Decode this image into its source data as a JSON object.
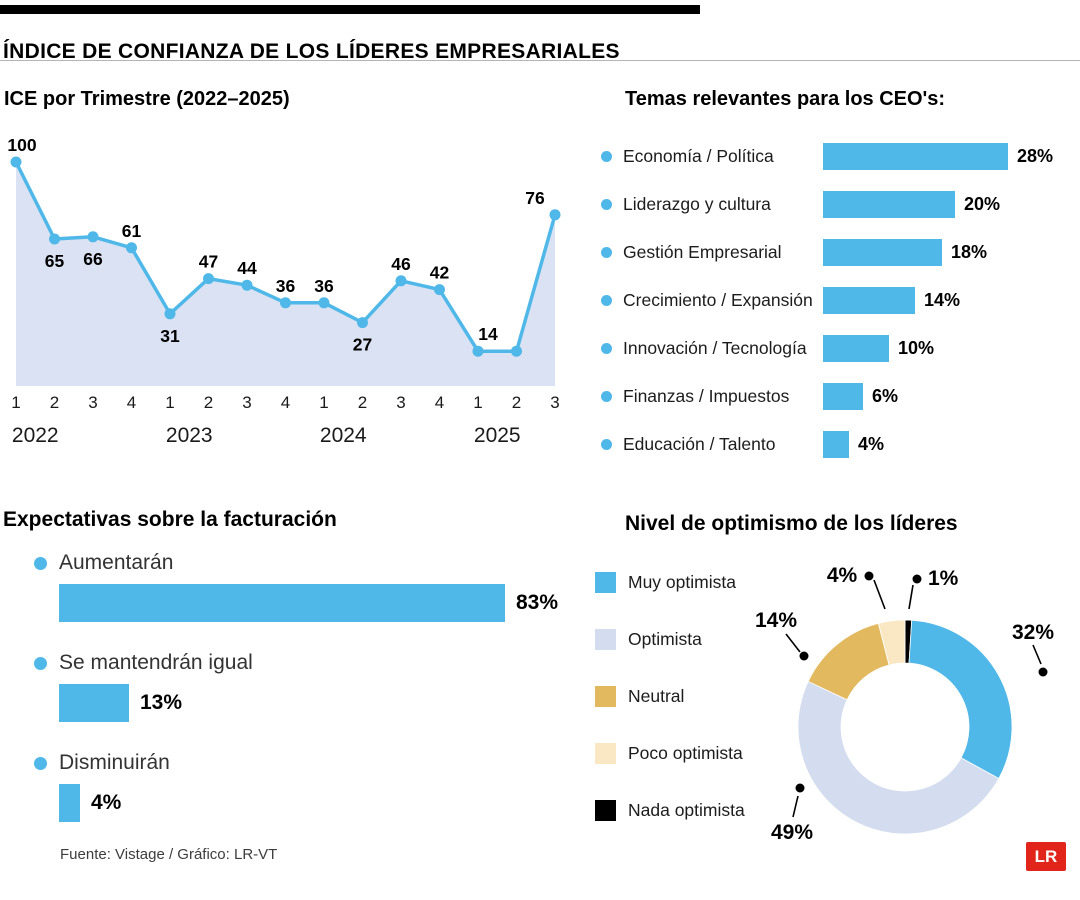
{
  "header": {
    "title": "ÍNDICE DE CONFIANZA DE LOS LÍDERES EMPRESARIALES"
  },
  "colors": {
    "blue": "#4fb8e8",
    "area_fill": "#dbe2f3",
    "periwinkle": "#d4dcf0",
    "gold": "#e3b960",
    "cream": "#fae8c4",
    "black": "#000000",
    "lr_red": "#e1251b"
  },
  "chart_data": [
    {
      "id": "ice_trend",
      "type": "line",
      "title": "ICE por Trimestre (2022–2025)",
      "x": [
        1,
        2,
        3,
        4,
        1,
        2,
        3,
        4,
        1,
        2,
        3,
        4,
        1,
        2,
        3
      ],
      "values": [
        100,
        65,
        66,
        61,
        31,
        47,
        44,
        36,
        36,
        27,
        46,
        42,
        14,
        14,
        76
      ],
      "point_labels": [
        "100",
        "65",
        "66",
        "61",
        "31",
        "47",
        "44",
        "36",
        "36",
        "27",
        "46",
        "42",
        "14",
        "",
        "76"
      ],
      "label_pos": [
        "above",
        "below",
        "below",
        "above",
        "below",
        "above",
        "above",
        "above",
        "above",
        "below",
        "above",
        "above",
        "above",
        "above",
        "above"
      ],
      "label_dx": [
        2,
        0,
        0,
        0,
        0,
        0,
        0,
        0,
        0,
        0,
        0,
        0,
        10,
        0,
        -20
      ],
      "years": [
        {
          "label": "2022",
          "start_index": 0
        },
        {
          "label": "2023",
          "start_index": 4
        },
        {
          "label": "2024",
          "start_index": 8
        },
        {
          "label": "2025",
          "start_index": 12
        }
      ],
      "ylim": [
        0,
        100
      ],
      "grid": false
    },
    {
      "id": "ceo_topics",
      "type": "bar",
      "title": "Temas relevantes para los CEO's:",
      "categories": [
        "Economía / Política",
        "Liderazgo y cultura",
        "Gestión Empresarial",
        "Crecimiento / Expansión",
        "Innovación / Tecnología",
        "Finanzas / Impuestos",
        "Educación / Talento"
      ],
      "values": [
        28,
        20,
        18,
        14,
        10,
        6,
        4
      ],
      "unit": "%"
    },
    {
      "id": "billing_expectations",
      "type": "bar",
      "title": "Expectativas sobre la facturación",
      "categories": [
        "Aumentarán",
        "Se mantendrán igual",
        "Disminuirán"
      ],
      "values": [
        83,
        13,
        4
      ],
      "unit": "%"
    },
    {
      "id": "optimism",
      "type": "pie",
      "title": "Nivel de optimismo de los líderes",
      "categories": [
        "Muy optimista",
        "Optimista",
        "Neutral",
        "Poco optimista",
        "Nada optimista"
      ],
      "values": [
        32,
        49,
        14,
        4,
        1
      ],
      "colors": [
        "#4fb8e8",
        "#d4dcf0",
        "#e3b960",
        "#fae8c4",
        "#000000"
      ],
      "unit": "%",
      "donut": true,
      "legend_position": "left"
    }
  ],
  "footer": {
    "source": "Fuente: Vistage / Gráfico: LR-VT",
    "logo": "LR"
  }
}
